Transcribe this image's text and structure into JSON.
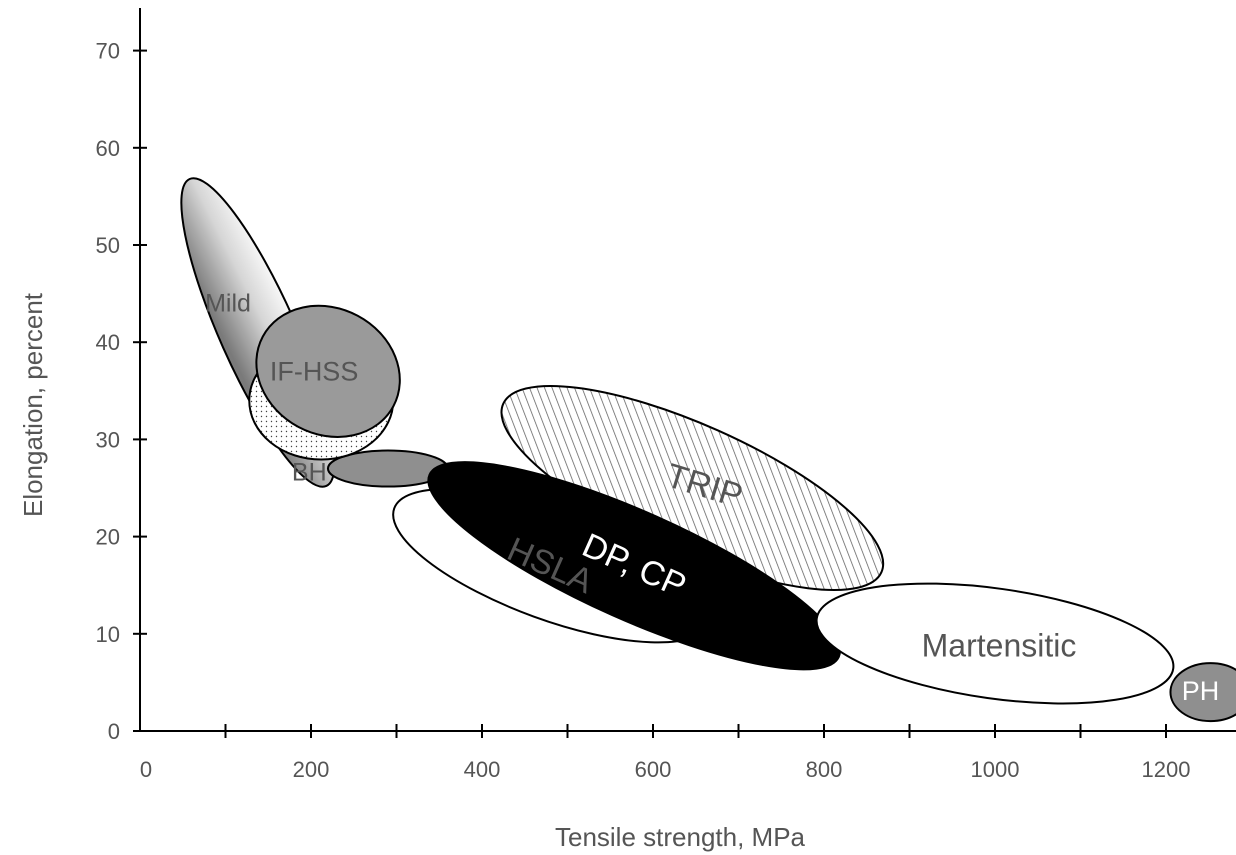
{
  "chart_data": {
    "type": "scatter",
    "subtype": "region-ellipses",
    "xlabel": "Tensile strength, MPa",
    "ylabel": "Elongation, percent",
    "xlim": [
      0,
      1280
    ],
    "ylim": [
      0,
      75
    ],
    "x_ticks": [
      0,
      200,
      400,
      600,
      800,
      1000,
      1200
    ],
    "x_minor_ticks": [
      100,
      300,
      500,
      700,
      900,
      1100
    ],
    "y_ticks": [
      0,
      10,
      20,
      30,
      40,
      50,
      60,
      70
    ],
    "grid": false,
    "legend": "none",
    "regions": [
      {
        "name": "Mild",
        "center": [
          138,
          41
        ],
        "semi_axes": [
          168,
          38
        ],
        "angle": 66,
        "fill": "gradient-gray",
        "label_color": "#555555",
        "label_angle": 0
      },
      {
        "name": "",
        "center": [
          290,
          27
        ],
        "semi_axes": [
          60,
          18
        ],
        "angle": 0,
        "fill": "#8f8f8f",
        "label_color": "#555555",
        "label_angle": 0
      },
      {
        "name": "BH",
        "center": [
          212,
          34
        ],
        "semi_axes": [
          72,
          59
        ],
        "angle": 0,
        "fill": "dots",
        "label_color": "#555555",
        "label_angle": 0
      },
      {
        "name": "IF-HSS",
        "center": [
          220,
          37
        ],
        "semi_axes": [
          74,
          63
        ],
        "angle": 28,
        "fill": "#9a9a9a",
        "label_color": "#555555",
        "label_angle": 0
      },
      {
        "name": "HSLA",
        "center": [
          482,
          17
        ],
        "semi_axes": [
          168,
          54
        ],
        "angle": 20,
        "fill": "#ffffff",
        "label_color": "#555555",
        "label_angle": 24
      },
      {
        "name": "TRIP",
        "center": [
          646,
          25
        ],
        "semi_axes": [
          207,
          63
        ],
        "angle": 24,
        "fill": "hatch",
        "label_color": "#555555",
        "label_angle": 17
      },
      {
        "name": "DP, CP",
        "center": [
          578,
          17
        ],
        "semi_axes": [
          224,
          54
        ],
        "angle": 24,
        "fill": "#000000",
        "label_color": "#ffffff",
        "label_angle": 24
      },
      {
        "name": "Martensitic",
        "center": [
          1000,
          9
        ],
        "semi_axes": [
          180,
          55
        ],
        "angle": 8,
        "fill": "#ffffff",
        "label_color": "#555555",
        "label_angle": 0
      },
      {
        "name": "PH",
        "center": [
          1252,
          4
        ],
        "semi_axes": [
          40,
          29
        ],
        "angle": 0,
        "fill": "#8f8f8f",
        "label_color": "#ffffff",
        "label_angle": 0
      }
    ]
  }
}
